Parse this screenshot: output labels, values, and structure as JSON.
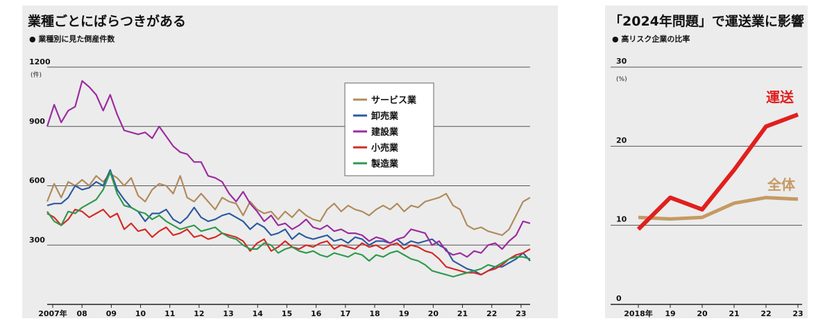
{
  "chart_data": [
    {
      "type": "line",
      "title": "業種ごとにばらつきがある",
      "subtitle": "● 業種別に見た倒産件数",
      "unit": "(件)",
      "ylim": [
        0,
        1200
      ],
      "yticks": [
        300,
        600,
        900,
        1200
      ],
      "grid": true,
      "legend_position": "top-right",
      "x_tick_labels": [
        "2007年",
        "08",
        "09",
        "10",
        "11",
        "12",
        "13",
        "14",
        "15",
        "16",
        "17",
        "18",
        "19",
        "20",
        "21",
        "22",
        "23"
      ],
      "series": [
        {
          "name": "サービス業",
          "color": "#b08b5c",
          "values": [
            520,
            610,
            540,
            620,
            600,
            630,
            600,
            650,
            620,
            660,
            640,
            600,
            640,
            550,
            520,
            580,
            610,
            600,
            560,
            650,
            540,
            520,
            560,
            520,
            480,
            540,
            520,
            510,
            450,
            520,
            480,
            460,
            470,
            430,
            470,
            440,
            480,
            450,
            430,
            420,
            480,
            510,
            470,
            500,
            480,
            470,
            450,
            480,
            500,
            480,
            510,
            470,
            500,
            490,
            520,
            530,
            540,
            560,
            500,
            480,
            400,
            380,
            390,
            370,
            360,
            350,
            380,
            450,
            520,
            540
          ]
        },
        {
          "name": "卸売業",
          "color": "#2c5aa0",
          "values": [
            500,
            510,
            510,
            540,
            600,
            580,
            590,
            620,
            600,
            680,
            580,
            530,
            490,
            470,
            420,
            460,
            460,
            480,
            430,
            410,
            440,
            490,
            440,
            420,
            430,
            450,
            460,
            440,
            420,
            380,
            410,
            390,
            350,
            360,
            380,
            330,
            360,
            340,
            330,
            340,
            350,
            320,
            330,
            310,
            340,
            330,
            300,
            320,
            320,
            310,
            330,
            300,
            320,
            310,
            320,
            330,
            300,
            280,
            220,
            200,
            180,
            170,
            150,
            170,
            190,
            190,
            210,
            230,
            260,
            220
          ]
        },
        {
          "name": "建設業",
          "color": "#9b2ca0",
          "values": [
            900,
            1010,
            920,
            980,
            1000,
            1130,
            1100,
            1060,
            980,
            1060,
            960,
            880,
            870,
            860,
            870,
            840,
            900,
            850,
            800,
            770,
            760,
            720,
            720,
            650,
            640,
            620,
            560,
            520,
            570,
            510,
            470,
            420,
            450,
            400,
            410,
            380,
            400,
            430,
            390,
            380,
            400,
            370,
            380,
            360,
            360,
            350,
            320,
            340,
            330,
            310,
            330,
            340,
            380,
            370,
            360,
            300,
            320,
            270,
            250,
            260,
            240,
            270,
            260,
            300,
            310,
            280,
            320,
            350,
            420,
            410
          ]
        },
        {
          "name": "小売業",
          "color": "#d42a24",
          "values": [
            460,
            440,
            400,
            430,
            480,
            470,
            440,
            460,
            480,
            440,
            460,
            380,
            410,
            370,
            380,
            340,
            370,
            390,
            350,
            360,
            380,
            340,
            350,
            330,
            340,
            360,
            350,
            340,
            320,
            270,
            310,
            330,
            270,
            290,
            320,
            290,
            280,
            300,
            290,
            310,
            320,
            280,
            300,
            290,
            280,
            310,
            290,
            300,
            280,
            300,
            310,
            280,
            300,
            290,
            270,
            260,
            230,
            190,
            180,
            170,
            160,
            160,
            150,
            170,
            180,
            200,
            230,
            250,
            260,
            280
          ]
        },
        {
          "name": "製造業",
          "color": "#2e9a4e",
          "values": [
            470,
            420,
            400,
            470,
            460,
            490,
            510,
            530,
            580,
            670,
            560,
            500,
            490,
            470,
            460,
            430,
            450,
            420,
            400,
            380,
            390,
            400,
            370,
            380,
            390,
            360,
            340,
            330,
            300,
            280,
            280,
            310,
            300,
            260,
            280,
            290,
            270,
            260,
            270,
            250,
            240,
            260,
            250,
            240,
            260,
            250,
            220,
            250,
            240,
            260,
            270,
            250,
            230,
            220,
            200,
            170,
            160,
            150,
            140,
            150,
            160,
            170,
            180,
            200,
            190,
            210,
            230,
            240,
            240,
            230
          ]
        }
      ]
    },
    {
      "type": "line",
      "title": "「2024年問題」で運送業に影響",
      "subtitle": "● 高リスク企業の比率",
      "unit": "(%)",
      "ylim": [
        0,
        30
      ],
      "yticks": [
        0,
        10,
        20,
        30
      ],
      "grid": true,
      "x": [
        "2018年",
        "19",
        "20",
        "21",
        "22",
        "23"
      ],
      "series": [
        {
          "name": "運送",
          "color": "#e0201e",
          "values": [
            9.5,
            13.5,
            12.0,
            17.0,
            22.5,
            24.0
          ]
        },
        {
          "name": "全体",
          "color": "#c49a64",
          "values": [
            11.0,
            10.8,
            11.0,
            12.8,
            13.5,
            13.3
          ]
        }
      ]
    }
  ]
}
